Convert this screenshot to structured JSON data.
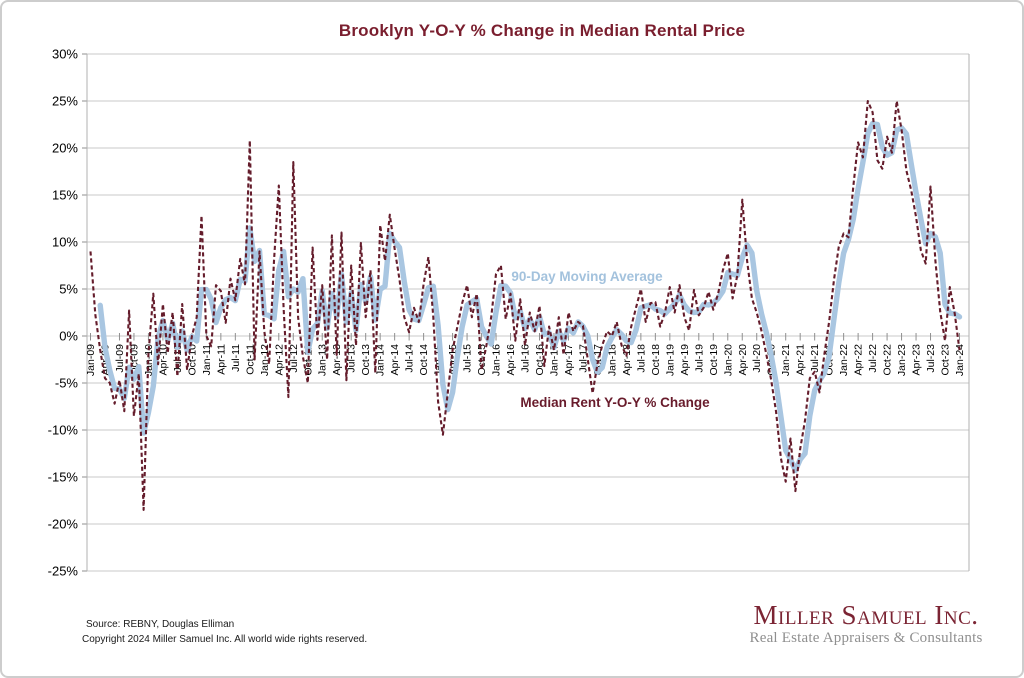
{
  "page": {
    "background": "#ffffff",
    "border_color": "#cdcdcd"
  },
  "chart_data": {
    "type": "line",
    "title": "Brooklyn Y-O-Y % Change in Median Rental Price",
    "title_color": "#7a1e2e",
    "xlabel": "",
    "ylabel": "",
    "ylim": [
      -25,
      30
    ],
    "grid": "horizontal",
    "x_frequency": "monthly",
    "x_range": [
      "Jan-09",
      "Jan-24"
    ],
    "y_ticks": [
      "30%",
      "25%",
      "20%",
      "15%",
      "10%",
      "5%",
      "0%",
      "-5%",
      "-10%",
      "-15%",
      "-20%",
      "-25%"
    ],
    "x_tick_labels": [
      "Jan-09",
      "Apr-09",
      "Jul-09",
      "Oct-09",
      "Jan-10",
      "Apr-10",
      "Jul-10",
      "Oct-10",
      "Jan-11",
      "Apr-11",
      "Jul-11",
      "Oct-11",
      "Jan-12",
      "Apr-12",
      "Jul-12",
      "Oct-12",
      "Jan-13",
      "Apr-13",
      "Jul-13",
      "Oct-13",
      "Jan-14",
      "Apr-14",
      "Jul-14",
      "Oct-14",
      "Jan-15",
      "Apr-15",
      "Jul-15",
      "Oct-15",
      "Jan-16",
      "Apr-16",
      "Jul-16",
      "Oct-16",
      "Jan-17",
      "Apr-17",
      "Jul-17",
      "Oct-17",
      "Jan-18",
      "Apr-18",
      "Jul-18",
      "Oct-18",
      "Jan-19",
      "Apr-19",
      "Jul-19",
      "Oct-19",
      "Jan-20",
      "Apr-20",
      "Jul-20",
      "Oct-20",
      "Jan-21",
      "Apr-21",
      "Jul-21",
      "Oct-21",
      "Jan-22",
      "Apr-22",
      "Jul-22",
      "Oct-22",
      "Jan-23",
      "Apr-23",
      "Jul-23",
      "Oct-23",
      "Jan-24"
    ],
    "series": [
      {
        "name": "Median Rent Y-O-Y % Change",
        "color": "#641c2b",
        "style": "dashed",
        "values": [
          9.0,
          2.3,
          -1.5,
          -4.5,
          -5.0,
          -7.2,
          -4.7,
          -8.0,
          2.7,
          -8.5,
          -4.0,
          -18.5,
          -2.0,
          4.5,
          -3.0,
          3.4,
          -1.8,
          2.5,
          -4.3,
          3.4,
          -3.6,
          0.0,
          2.0,
          12.8,
          0.0,
          -1.1,
          5.4,
          4.8,
          1.4,
          6.1,
          3.8,
          8.2,
          5.5,
          20.8,
          -2.5,
          9.0,
          0.5,
          -3.0,
          8.0,
          16.0,
          3.0,
          -6.5,
          18.5,
          2.0,
          -2.2,
          -5.0,
          9.4,
          -0.4,
          5.4,
          -2.5,
          10.7,
          -2.0,
          11.0,
          -4.7,
          7.5,
          -1.0,
          9.9,
          2.0,
          7.0,
          -3.9,
          11.8,
          8.0,
          12.9,
          9.3,
          6.0,
          2.0,
          0.4,
          3.0,
          1.5,
          5.5,
          8.4,
          2.0,
          -7.0,
          -10.5,
          -6.0,
          -1.5,
          1.0,
          3.5,
          5.4,
          2.0,
          4.5,
          -3.6,
          -1.0,
          2.0,
          6.6,
          7.5,
          1.8,
          4.5,
          -0.5,
          3.9,
          -1.0,
          2.5,
          0.5,
          3.2,
          -3.2,
          1.0,
          -1.5,
          2.0,
          -2.0,
          2.5,
          0.5,
          1.5,
          1.1,
          -2.5,
          -6.1,
          -3.0,
          -1.0,
          0.5,
          0.0,
          1.5,
          -1.0,
          -2.1,
          1.0,
          3.0,
          5.0,
          1.5,
          3.5,
          3.6,
          1.0,
          2.5,
          5.2,
          2.5,
          5.4,
          2.0,
          0.6,
          4.9,
          2.2,
          3.0,
          4.7,
          2.8,
          4.5,
          7.0,
          8.8,
          4.0,
          6.5,
          14.5,
          8.0,
          4.0,
          2.5,
          0.5,
          -2.0,
          -4.7,
          -8.0,
          -13.0,
          -15.5,
          -10.9,
          -16.5,
          -12.0,
          -9.0,
          -4.5,
          -3.8,
          -6.0,
          -2.0,
          1.5,
          6.0,
          9.5,
          10.9,
          10.5,
          15.9,
          20.6,
          19.0,
          25.0,
          23.8,
          18.7,
          17.8,
          21.2,
          19.5,
          25.0,
          21.9,
          17.6,
          15.5,
          12.7,
          9.1,
          7.7,
          15.9,
          8.0,
          2.6,
          -0.5,
          5.2,
          2.4,
          -1.5
        ]
      },
      {
        "name": "90-Day Moving Average",
        "color": "#a9c6e1",
        "style": "solid-thick",
        "derived": "3-month trailing moving average of Median Rent Y-O-Y % Change",
        "window_months": 3
      }
    ]
  },
  "footer": {
    "source": "Source: REBNY, Douglas Elliman",
    "copyright": "Copyright 2024 Miller Samuel Inc.  All world wide rights reserved."
  },
  "logo": {
    "name": "Miller Samuel Inc.",
    "tagline": "Real Estate Appraisers & Consultants",
    "name_color": "#7b2433",
    "tagline_color": "#8f8f8f"
  }
}
